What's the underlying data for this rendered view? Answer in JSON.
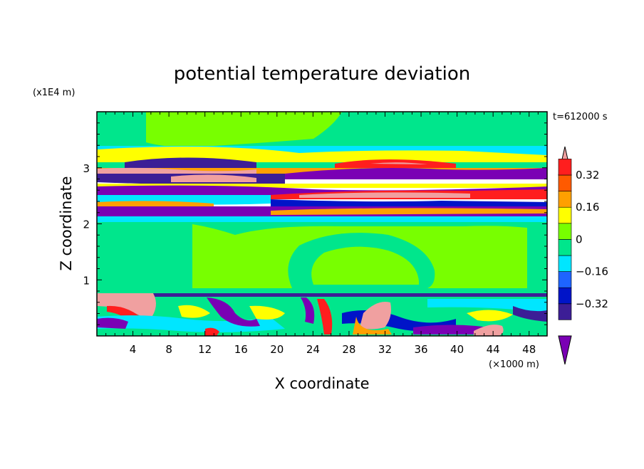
{
  "chart_data": {
    "type": "heatmap",
    "title": "potential temperature deviation",
    "xlabel": "X coordinate",
    "ylabel": "Z coordinate",
    "x_unit": "(×1000 m)",
    "y_unit": "(x1E4 m)",
    "time_label": "t=612000 s",
    "xlim": [
      0,
      50
    ],
    "ylim": [
      0,
      4
    ],
    "x_ticks": [
      4,
      8,
      12,
      16,
      20,
      24,
      28,
      32,
      36,
      40,
      44,
      48
    ],
    "y_ticks": [
      1,
      2,
      3
    ],
    "colorbar": {
      "levels": [
        -0.48,
        -0.4,
        -0.32,
        -0.24,
        -0.16,
        -0.08,
        0,
        0.08,
        0.16,
        0.24,
        0.32,
        0.4
      ],
      "tick_labels": [
        "0.32",
        "0.16",
        "0",
        "−0.16",
        "−0.32"
      ],
      "tick_values": [
        0.32,
        0.16,
        0,
        -0.16,
        -0.32
      ],
      "colors": [
        "#7a00b4",
        "#3c1e96",
        "#0014c8",
        "#1e64ff",
        "#00e6ff",
        "#00e68c",
        "#78ff00",
        "#ffff00",
        "#ffa000",
        "#ff5a00",
        "#ff1e1e",
        "#f0a0a0"
      ],
      "extend": "both"
    },
    "colors": {
      "green_high": "#78ff00",
      "green_low": "#00e68c",
      "cyan": "#00e6ff",
      "yellow": "#ffff00",
      "orange": "#ffa000",
      "red": "#ff1e1e",
      "pink": "#f0a0a0",
      "purple": "#7a00b4",
      "navy": "#3c1e96",
      "blue": "#0014c8"
    }
  }
}
